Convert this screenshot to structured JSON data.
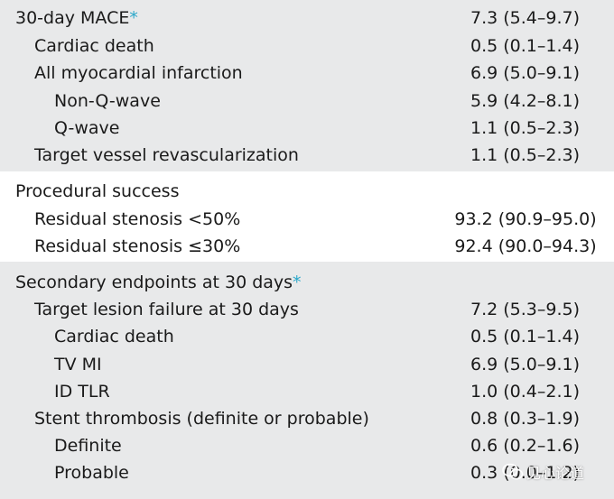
{
  "section1": {
    "rows": [
      {
        "label": "30-day MACE",
        "star": "*",
        "value": "7.3 (5.4–9.7)"
      },
      {
        "label": "Cardiac death",
        "value": "0.5 (0.1–1.4)"
      },
      {
        "label": "All myocardial infarction",
        "value": "6.9 (5.0–9.1)"
      },
      {
        "label": "Non-Q-wave",
        "value": "5.9 (4.2–8.1)"
      },
      {
        "label": "Q-wave",
        "value": "1.1 (0.5–2.3)"
      },
      {
        "label": "Target vessel revascularization",
        "value": "1.1 (0.5–2.3)"
      }
    ]
  },
  "section2": {
    "heading": "Procedural success",
    "rows": [
      {
        "label": "Residual stenosis <50%",
        "value": "93.2 (90.9–95.0)"
      },
      {
        "label": "Residual stenosis ≤30%",
        "value": "92.4 (90.0–94.3)"
      }
    ]
  },
  "section3": {
    "heading": "Secondary endpoints at 30 days",
    "heading_star": "*",
    "rows": [
      {
        "label": "Target lesion failure at 30 days",
        "value": "7.2 (5.3–9.5)"
      },
      {
        "label": "Cardiac death",
        "value": "0.5 (0.1–1.4)"
      },
      {
        "label": "TV MI",
        "value": "6.9 (5.0–9.1)"
      },
      {
        "label": "ID TLR",
        "value": "1.0 (0.4–2.1)"
      },
      {
        "label": "Stent thrombosis (definite or probable)",
        "value": "0.8 (0.3–1.9)"
      },
      {
        "label": "Definite",
        "value": "0.6 (0.2–1.6)"
      },
      {
        "label": "Probable",
        "value": "0.3 (0.0–1.2)"
      }
    ]
  },
  "watermark": {
    "text": "见心论道"
  }
}
